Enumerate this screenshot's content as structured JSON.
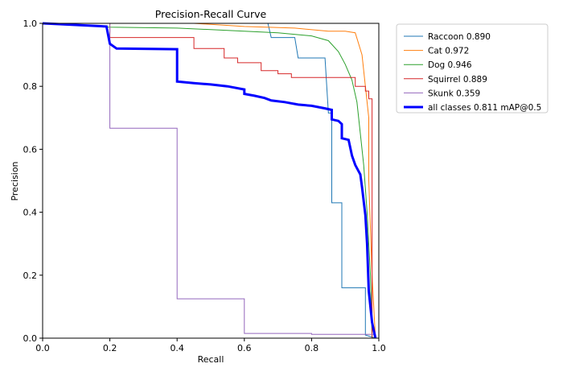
{
  "chart_data": {
    "type": "line",
    "title": "Precision-Recall Curve",
    "xlabel": "Recall",
    "ylabel": "Precision",
    "xlim": [
      0.0,
      1.0
    ],
    "ylim": [
      0.0,
      1.0
    ],
    "xticks": [
      "0.0",
      "0.2",
      "0.4",
      "0.6",
      "0.8",
      "1.0"
    ],
    "yticks": [
      "0.0",
      "0.2",
      "0.4",
      "0.6",
      "0.8",
      "1.0"
    ],
    "grid": false,
    "legend_position": "outside-right",
    "series": [
      {
        "name": "Raccoon 0.890",
        "color": "#1f77b4",
        "width": 1,
        "step": true,
        "points": [
          [
            0,
            1
          ],
          [
            0.67,
            1
          ],
          [
            0.68,
            0.955
          ],
          [
            0.75,
            0.955
          ],
          [
            0.76,
            0.89
          ],
          [
            0.84,
            0.89
          ],
          [
            0.85,
            0.715
          ],
          [
            0.86,
            0.715
          ],
          [
            0.86,
            0.43
          ],
          [
            0.89,
            0.43
          ],
          [
            0.89,
            0.16
          ],
          [
            0.96,
            0.16
          ],
          [
            0.96,
            0.01
          ],
          [
            0.99,
            0.0
          ]
        ]
      },
      {
        "name": "Cat 0.972",
        "color": "#ff7f0e",
        "width": 1,
        "step": false,
        "points": [
          [
            0,
            1
          ],
          [
            0.45,
            1
          ],
          [
            0.6,
            0.99
          ],
          [
            0.75,
            0.985
          ],
          [
            0.85,
            0.975
          ],
          [
            0.9,
            0.975
          ],
          [
            0.93,
            0.97
          ],
          [
            0.95,
            0.9
          ],
          [
            0.96,
            0.8
          ],
          [
            0.97,
            0.7
          ],
          [
            0.97,
            0.5
          ],
          [
            0.98,
            0.2
          ],
          [
            0.99,
            0.0
          ]
        ]
      },
      {
        "name": "Dog 0.946",
        "color": "#2ca02c",
        "width": 1,
        "step": false,
        "points": [
          [
            0,
            1
          ],
          [
            0.2,
            0.988
          ],
          [
            0.4,
            0.985
          ],
          [
            0.5,
            0.98
          ],
          [
            0.6,
            0.975
          ],
          [
            0.7,
            0.97
          ],
          [
            0.8,
            0.96
          ],
          [
            0.85,
            0.945
          ],
          [
            0.88,
            0.91
          ],
          [
            0.9,
            0.87
          ],
          [
            0.92,
            0.82
          ],
          [
            0.935,
            0.75
          ],
          [
            0.945,
            0.65
          ],
          [
            0.955,
            0.55
          ],
          [
            0.965,
            0.4
          ],
          [
            0.975,
            0.2
          ],
          [
            0.98,
            0.0
          ]
        ]
      },
      {
        "name": "Squirrel 0.889",
        "color": "#d62728",
        "width": 1,
        "step": true,
        "points": [
          [
            0,
            1
          ],
          [
            0.2,
            1
          ],
          [
            0.2,
            0.955
          ],
          [
            0.45,
            0.955
          ],
          [
            0.45,
            0.92
          ],
          [
            0.54,
            0.92
          ],
          [
            0.54,
            0.89
          ],
          [
            0.58,
            0.89
          ],
          [
            0.58,
            0.875
          ],
          [
            0.65,
            0.875
          ],
          [
            0.65,
            0.85
          ],
          [
            0.7,
            0.85
          ],
          [
            0.7,
            0.84
          ],
          [
            0.74,
            0.84
          ],
          [
            0.74,
            0.828
          ],
          [
            0.93,
            0.828
          ],
          [
            0.93,
            0.8
          ],
          [
            0.96,
            0.8
          ],
          [
            0.96,
            0.785
          ],
          [
            0.97,
            0.785
          ],
          [
            0.97,
            0.76
          ],
          [
            0.98,
            0.76
          ],
          [
            0.98,
            0.0
          ]
        ]
      },
      {
        "name": "Skunk 0.359",
        "color": "#9467bd",
        "width": 1,
        "step": true,
        "points": [
          [
            0,
            1
          ],
          [
            0.2,
            1
          ],
          [
            0.2,
            0.667
          ],
          [
            0.4,
            0.667
          ],
          [
            0.4,
            0.125
          ],
          [
            0.6,
            0.125
          ],
          [
            0.6,
            0.015
          ],
          [
            0.8,
            0.015
          ],
          [
            0.8,
            0.012
          ],
          [
            0.99,
            0.012
          ],
          [
            0.99,
            0.0
          ]
        ]
      },
      {
        "name": "all classes 0.811 mAP@0.5",
        "color": "#0000ff",
        "width": 3,
        "step": false,
        "points": [
          [
            0,
            1
          ],
          [
            0.19,
            0.99
          ],
          [
            0.2,
            0.935
          ],
          [
            0.22,
            0.92
          ],
          [
            0.4,
            0.918
          ],
          [
            0.4,
            0.815
          ],
          [
            0.45,
            0.81
          ],
          [
            0.5,
            0.806
          ],
          [
            0.55,
            0.8
          ],
          [
            0.6,
            0.79
          ],
          [
            0.6,
            0.776
          ],
          [
            0.63,
            0.77
          ],
          [
            0.66,
            0.763
          ],
          [
            0.68,
            0.755
          ],
          [
            0.72,
            0.75
          ],
          [
            0.76,
            0.742
          ],
          [
            0.8,
            0.738
          ],
          [
            0.84,
            0.73
          ],
          [
            0.86,
            0.725
          ],
          [
            0.86,
            0.695
          ],
          [
            0.88,
            0.69
          ],
          [
            0.89,
            0.68
          ],
          [
            0.89,
            0.635
          ],
          [
            0.91,
            0.63
          ],
          [
            0.92,
            0.58
          ],
          [
            0.93,
            0.55
          ],
          [
            0.945,
            0.52
          ],
          [
            0.95,
            0.48
          ],
          [
            0.96,
            0.39
          ],
          [
            0.965,
            0.3
          ],
          [
            0.97,
            0.15
          ],
          [
            0.98,
            0.05
          ],
          [
            0.99,
            0.0
          ]
        ]
      }
    ]
  }
}
